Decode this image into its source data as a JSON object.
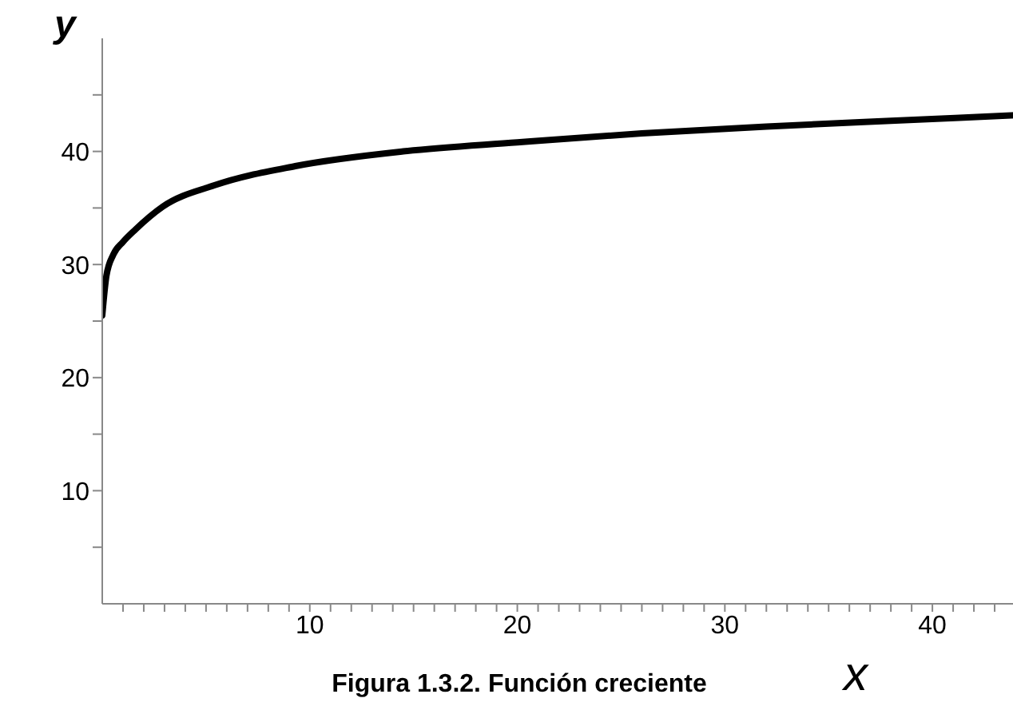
{
  "chart_data": {
    "type": "line",
    "title": "Figura 1.3.2. Función creciente",
    "xlabel": "x",
    "ylabel": "y",
    "x": [
      0,
      0.2,
      0.54,
      1,
      1.6,
      2.9,
      5.4,
      9.3,
      14.5,
      20,
      26,
      32,
      38,
      44
    ],
    "series": [
      {
        "color": "#000000",
        "values": [
          25.5,
          29,
          30.9,
          32,
          33.1,
          35.1,
          37,
          38.7,
          40,
          40.8,
          41.6,
          42.2,
          42.7,
          43.2
        ]
      }
    ],
    "xlim": [
      0,
      44.5
    ],
    "xticks": [
      {
        "value": 1,
        "label": null
      },
      {
        "value": 2,
        "label": null
      },
      {
        "value": 3,
        "label": null
      },
      {
        "value": 4,
        "label": null
      },
      {
        "value": 5,
        "label": null
      },
      {
        "value": 6,
        "label": null
      },
      {
        "value": 7,
        "label": null
      },
      {
        "value": 8,
        "label": null
      },
      {
        "value": 9,
        "label": null
      },
      10,
      {
        "value": 11,
        "label": null
      },
      {
        "value": 12,
        "label": null
      },
      {
        "value": 13,
        "label": null
      },
      {
        "value": 14,
        "label": null
      },
      {
        "value": 15,
        "label": null
      },
      {
        "value": 16,
        "label": null
      },
      {
        "value": 17,
        "label": null
      },
      {
        "value": 18,
        "label": null
      },
      {
        "value": 19,
        "label": null
      },
      20,
      {
        "value": 21,
        "label": null
      },
      {
        "value": 22,
        "label": null
      },
      {
        "value": 23,
        "label": null
      },
      {
        "value": 24,
        "label": null
      },
      {
        "value": 25,
        "label": null
      },
      {
        "value": 26,
        "label": null
      },
      {
        "value": 27,
        "label": null
      },
      {
        "value": 28,
        "label": null
      },
      {
        "value": 29,
        "label": null
      },
      30,
      {
        "value": 31,
        "label": null
      },
      {
        "value": 32,
        "label": null
      },
      {
        "value": 33,
        "label": null
      },
      {
        "value": 34,
        "label": null
      },
      {
        "value": 35,
        "label": null
      },
      {
        "value": 36,
        "label": null
      },
      {
        "value": 37,
        "label": null
      },
      {
        "value": 38,
        "label": null
      },
      {
        "value": 39,
        "label": null
      },
      40,
      {
        "value": 41,
        "label": null
      },
      {
        "value": 42,
        "label": null
      },
      {
        "value": 43,
        "label": null
      },
      {
        "value": 44,
        "label": null
      }
    ],
    "ylim": [
      0,
      50
    ],
    "yticks": [
      {
        "value": 5,
        "label": null
      },
      10,
      {
        "value": 15,
        "label": null
      },
      20,
      {
        "value": 25,
        "label": null
      },
      30,
      {
        "value": 35,
        "label": null
      },
      40,
      {
        "value": 45,
        "label": null
      }
    ],
    "grid": false,
    "legend": false,
    "marker": "none",
    "line_style": "solid"
  }
}
